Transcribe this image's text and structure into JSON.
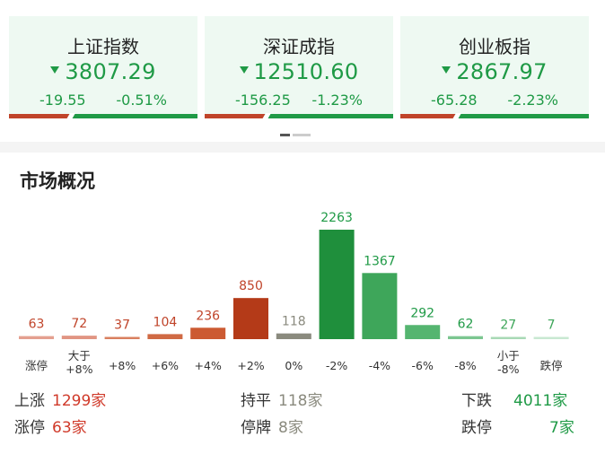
{
  "indices": [
    {
      "name": "上证指数",
      "value": "3807.29",
      "change": "-19.55",
      "pct": "-0.51%",
      "red_ratio": 0.32
    },
    {
      "name": "深证成指",
      "value": "12510.60",
      "change": "-156.25",
      "pct": "-1.23%",
      "red_ratio": 0.32
    },
    {
      "name": "创业板指",
      "value": "2867.97",
      "change": "-65.28",
      "pct": "-2.23%",
      "red_ratio": 0.29
    }
  ],
  "colors": {
    "up": "#c0442a",
    "down": "#1f9a46",
    "flat": "#8a8a7e",
    "card_bg": "#eef9f2"
  },
  "section": {
    "title": "市场概况"
  },
  "chart_data": {
    "type": "bar",
    "categories": [
      "涨停",
      "大于+8%",
      "+8%",
      "+6%",
      "+4%",
      "+2%",
      "0%",
      "-2%",
      "-4%",
      "-6%",
      "-8%",
      "小于-8%",
      "跌停"
    ],
    "category_lines": [
      [
        "涨停"
      ],
      [
        "大于",
        "+8%"
      ],
      [
        "+8%"
      ],
      [
        "+6%"
      ],
      [
        "+4%"
      ],
      [
        "+2%"
      ],
      [
        "0%"
      ],
      [
        "-2%"
      ],
      [
        "-4%"
      ],
      [
        "-6%"
      ],
      [
        "-8%"
      ],
      [
        "小于",
        "-8%"
      ],
      [
        "跌停"
      ]
    ],
    "values": [
      63,
      72,
      37,
      104,
      236,
      850,
      118,
      2263,
      1367,
      292,
      62,
      27,
      7
    ],
    "colors": [
      "#e4a090",
      "#e19583",
      "#d9805f",
      "#d06a44",
      "#cc5a32",
      "#b43a18",
      "#8a8a7e",
      "#1f8f3c",
      "#3ea65a",
      "#55b570",
      "#7cc690",
      "#a8d9b5",
      "#c8e8d2"
    ],
    "ylim": [
      0,
      2263
    ]
  },
  "stats": {
    "up_label": "上涨",
    "up_value": "1299家",
    "limit_up_label": "涨停",
    "limit_up_value": "63家",
    "flat_label": "持平",
    "flat_value": "118家",
    "suspended_label": "停牌",
    "suspended_value": "8家",
    "down_label": "下跌",
    "down_value": "4011家",
    "limit_down_label": "跌停",
    "limit_down_value": "7家"
  }
}
